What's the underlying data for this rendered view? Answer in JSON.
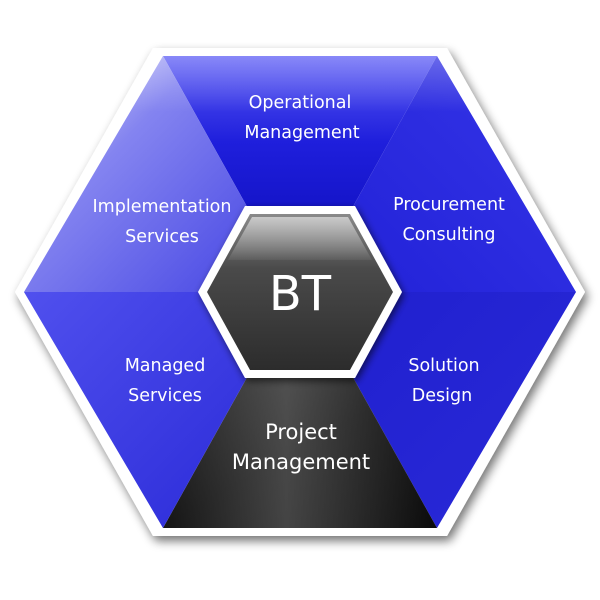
{
  "diagram": {
    "center": {
      "label": "BT"
    },
    "segments": [
      {
        "id": "operational-management",
        "lines": [
          "Operational",
          "Management"
        ]
      },
      {
        "id": "procurement-consulting",
        "lines": [
          "Procurement",
          "Consulting"
        ]
      },
      {
        "id": "solution-design",
        "lines": [
          "Solution",
          "Design"
        ]
      },
      {
        "id": "project-management",
        "lines": [
          "Project",
          "Management"
        ]
      },
      {
        "id": "managed-services",
        "lines": [
          "Managed",
          "Services"
        ]
      },
      {
        "id": "implementation-services",
        "lines": [
          "Implementation",
          "Services"
        ]
      }
    ]
  },
  "colors": {
    "segment_blue": "#2d2de6",
    "segment_dark": "#1b1b1b",
    "center_fill": "#4a4a4a",
    "border": "#ffffff"
  }
}
